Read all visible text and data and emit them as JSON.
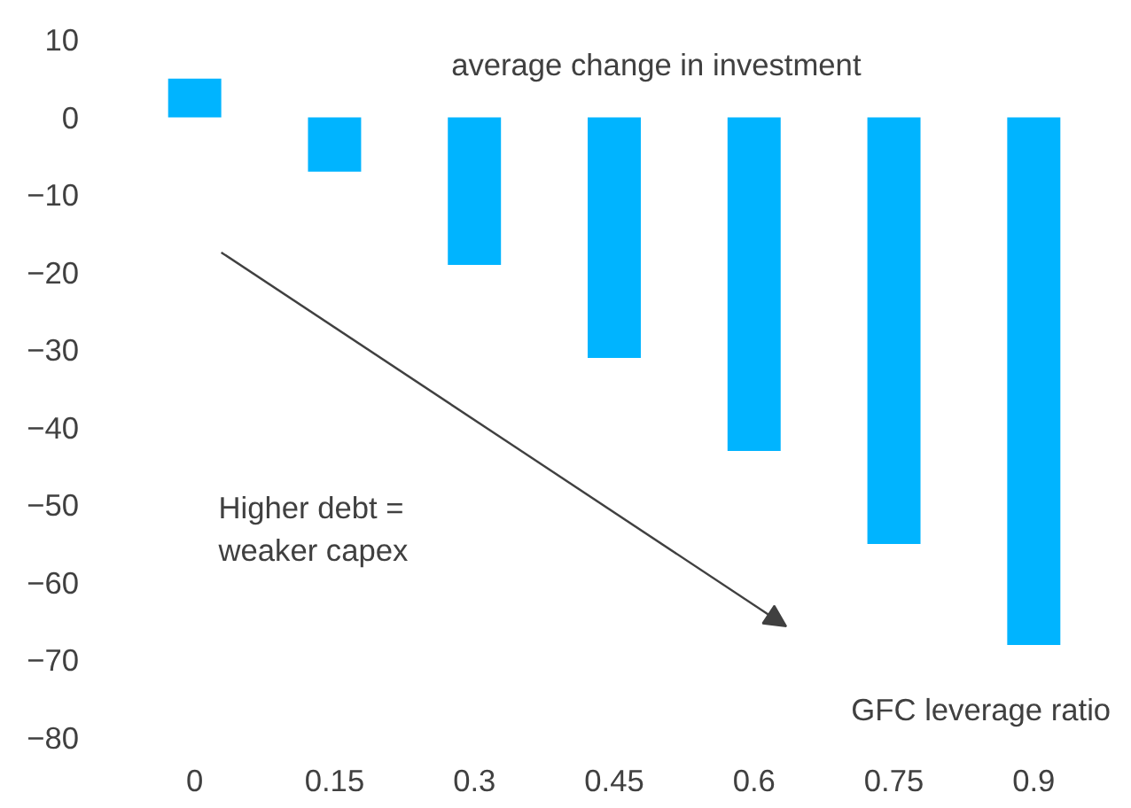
{
  "chart_data": {
    "type": "bar",
    "title": "average change in investment",
    "xlabel": "GFC leverage ratio",
    "categories": [
      "0",
      "0.15",
      "0.3",
      "0.45",
      "0.6",
      "0.75",
      "0.9"
    ],
    "values": [
      5,
      -7,
      -19,
      -31,
      -43,
      -55,
      -68
    ],
    "color": "#00b4ff",
    "ylim": [
      -80,
      10
    ],
    "yticks": [
      10,
      0,
      -10,
      -20,
      -30,
      -40,
      -50,
      -60,
      -70,
      -80
    ],
    "grid": false,
    "annotations": [
      "Higher debt = weaker capex"
    ]
  }
}
